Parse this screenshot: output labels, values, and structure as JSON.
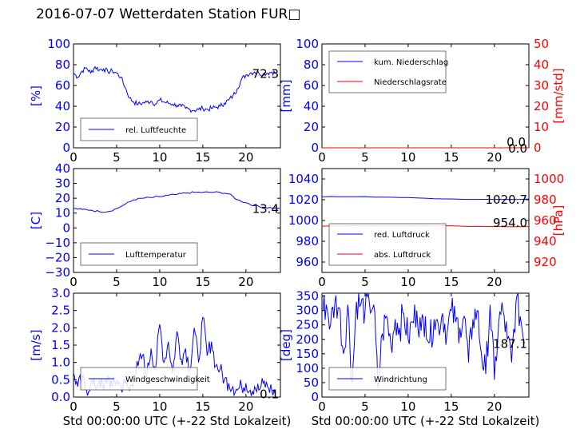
{
  "title": "2016-07-07 Wetterdaten Station FUR□",
  "colors": {
    "primary": "#0000ff",
    "secondary": "#ff0000",
    "axis": "#000000"
  },
  "chart_data": [
    {
      "type": "line",
      "panel": "rel. Luftfeuchte",
      "ylabel": "[%]",
      "xlim": [
        0,
        24
      ],
      "ylim": [
        0,
        100
      ],
      "xticks": [
        "0",
        "5",
        "10",
        "15",
        "20"
      ],
      "yticks": [
        "0",
        "20",
        "40",
        "60",
        "80",
        "100"
      ],
      "legend": "bottom-left",
      "last_value": "72.3",
      "series": [
        {
          "name": "rel. Luftfeuchte",
          "color": "#0000ff",
          "x": [
            0,
            0.5,
            1,
            1.5,
            2,
            2.5,
            3,
            3.5,
            4,
            4.5,
            5,
            5.5,
            6,
            6.5,
            7,
            7.5,
            8,
            8.5,
            9,
            9.5,
            10,
            10.5,
            11,
            11.5,
            12,
            12.5,
            13,
            13.5,
            14,
            14.5,
            15,
            15.5,
            16,
            16.5,
            17,
            17.5,
            18,
            18.5,
            19,
            19.5,
            20,
            20.5,
            21,
            21.5,
            22,
            22.5,
            23,
            23.5
          ],
          "y": [
            72,
            68,
            74,
            77,
            72,
            78,
            75,
            76,
            73,
            74,
            72,
            68,
            58,
            48,
            44,
            42,
            43,
            44,
            45,
            42,
            46,
            44,
            43,
            42,
            41,
            40,
            38,
            37,
            36,
            37,
            38,
            37,
            38,
            39,
            40,
            43,
            46,
            50,
            57,
            66,
            70,
            72,
            73,
            72,
            71,
            72,
            73,
            72
          ]
        }
      ]
    },
    {
      "type": "line",
      "panel": "Niederschlag",
      "ylabel": "[mm]",
      "y2label": "[mm/std]",
      "xlim": [
        0,
        24
      ],
      "ylim": [
        0,
        100
      ],
      "y2lim": [
        0,
        50
      ],
      "xticks": [
        "0",
        "5",
        "10",
        "15",
        "20"
      ],
      "yticks": [
        "0",
        "20",
        "40",
        "60",
        "80",
        "100"
      ],
      "y2ticks": [
        "0",
        "10",
        "20",
        "30",
        "40",
        "50"
      ],
      "legend": "top-left",
      "last_value": "0.0",
      "last_value2": "0.0",
      "series": [
        {
          "name": "kum. Niederschlag",
          "color": "#0000ff",
          "x": [
            0,
            24
          ],
          "y": [
            0,
            0
          ]
        },
        {
          "name": "Niederschlagsrate",
          "color": "#ff0000",
          "axis": "right",
          "x": [
            0,
            24
          ],
          "y": [
            0,
            0
          ]
        }
      ]
    },
    {
      "type": "line",
      "panel": "Lufttemperatur",
      "ylabel": "[C]",
      "xlim": [
        0,
        24
      ],
      "ylim": [
        -30,
        40
      ],
      "xticks": [
        "0",
        "5",
        "10",
        "15",
        "20"
      ],
      "yticks": [
        "−30",
        "−20",
        "−10",
        "0",
        "10",
        "20",
        "30",
        "40"
      ],
      "legend": "bottom-left",
      "last_value": "13.4",
      "series": [
        {
          "name": "Lufttemperatur",
          "color": "#0000ff",
          "x": [
            0,
            1,
            2,
            3,
            4,
            5,
            6,
            7,
            8,
            9,
            10,
            11,
            12,
            13,
            14,
            15,
            16,
            17,
            18,
            19,
            20,
            21,
            22,
            23,
            23.9
          ],
          "y": [
            13,
            12.5,
            12,
            11,
            11,
            13,
            16,
            19,
            20,
            20.5,
            21,
            22,
            22.5,
            23.5,
            24,
            24,
            24,
            24,
            23,
            19,
            17,
            15,
            14,
            13.5,
            13.4
          ]
        }
      ]
    },
    {
      "type": "line",
      "panel": "Luftdruck",
      "y2label": "[hPa]",
      "xlim": [
        0,
        24
      ],
      "ylim": [
        950,
        1050
      ],
      "y2lim": [
        910,
        1010
      ],
      "xticks": [
        "0",
        "5",
        "10",
        "15",
        "20"
      ],
      "yticks": [
        "960",
        "980",
        "1000",
        "1020",
        "1040"
      ],
      "y2ticks": [
        "920",
        "940",
        "960",
        "980",
        "1000"
      ],
      "legend": "bottom-left",
      "last_value": "1020.7",
      "last_value2": "954.0",
      "series": [
        {
          "name": "red. Luftdruck",
          "color": "#0000ff",
          "x": [
            0,
            4,
            8,
            12,
            16,
            20,
            24
          ],
          "y": [
            1022.8,
            1022.9,
            1022.4,
            1021.5,
            1020.5,
            1020.3,
            1020.7
          ]
        },
        {
          "name": "abs. Luftdruck",
          "color": "#ff0000",
          "axis": "right",
          "x": [
            0,
            4,
            8,
            12,
            16,
            20,
            24
          ],
          "y": [
            954.5,
            955.0,
            955.3,
            955.0,
            954.6,
            954.2,
            954.0
          ]
        }
      ]
    },
    {
      "type": "line",
      "panel": "Windgeschwindigkeit",
      "ylabel": "[m/s]",
      "xlabel": "Std 00:00:00 UTC (+-22 Std Lokalzeit)",
      "xlim": [
        0,
        24
      ],
      "ylim": [
        0,
        3
      ],
      "xticks": [
        "0",
        "5",
        "10",
        "15",
        "20"
      ],
      "yticks": [
        "0.0",
        "0.5",
        "1.0",
        "1.5",
        "2.0",
        "2.5",
        "3.0"
      ],
      "legend": "bottom-left",
      "last_value": "0.1",
      "series": [
        {
          "name": "Windgeschwindigkeit",
          "color": "#0000ff",
          "x": [
            0,
            0.5,
            1,
            1.5,
            2,
            2.5,
            3,
            3.5,
            4,
            4.5,
            5,
            5.5,
            6,
            6.5,
            7,
            7.5,
            8,
            8.5,
            9,
            9.5,
            10,
            10.5,
            11,
            11.5,
            12,
            12.5,
            13,
            13.5,
            14,
            14.5,
            15,
            15.5,
            16,
            16.5,
            17,
            17.5,
            18,
            18.5,
            19,
            19.5,
            20,
            20.5,
            21,
            21.5,
            22,
            22.5,
            23,
            23.5
          ],
          "y": [
            0.7,
            0.3,
            0.5,
            0.2,
            0.4,
            0.3,
            0.5,
            0.2,
            0.6,
            0.3,
            0.5,
            0.3,
            0.4,
            0.2,
            0.6,
            0.9,
            1.2,
            0.6,
            1.4,
            0.8,
            2.1,
            1.0,
            1.6,
            0.7,
            1.9,
            1.1,
            1.4,
            0.8,
            2.0,
            1.0,
            2.3,
            1.2,
            1.6,
            0.9,
            0.8,
            0.5,
            0.4,
            0.3,
            0.2,
            0.3,
            0.4,
            0.2,
            0.3,
            0.2,
            0.4,
            0.3,
            0.2,
            0.1
          ]
        }
      ]
    },
    {
      "type": "line",
      "panel": "Windrichtung",
      "ylabel": "[deg]",
      "xlabel": "Std 00:00:00 UTC (+-22 Std Lokalzeit)",
      "xlim": [
        0,
        24
      ],
      "ylim": [
        0,
        360
      ],
      "xticks": [
        "0",
        "5",
        "10",
        "15",
        "20"
      ],
      "yticks": [
        "0",
        "50",
        "100",
        "150",
        "200",
        "250",
        "300",
        "350"
      ],
      "legend": "bottom-left",
      "last_value": "187.1",
      "series": [
        {
          "name": "Windrichtung",
          "color": "#0000ff",
          "x": [
            0,
            0.5,
            1,
            1.5,
            2,
            2.5,
            3,
            3.5,
            4,
            4.5,
            5,
            5.5,
            6,
            6.5,
            7,
            7.5,
            8,
            8.5,
            9,
            9.5,
            10,
            10.5,
            11,
            11.5,
            12,
            12.5,
            13,
            13.5,
            14,
            14.5,
            15,
            15.5,
            16,
            16.5,
            17,
            17.5,
            18,
            18.5,
            19,
            19.5,
            20,
            20.5,
            21,
            21.5,
            22,
            22.5,
            23,
            23.5
          ],
          "y": [
            300,
            320,
            250,
            330,
            310,
            150,
            320,
            50,
            330,
            320,
            300,
            325,
            320,
            30,
            220,
            280,
            180,
            270,
            240,
            290,
            200,
            260,
            300,
            230,
            280,
            190,
            270,
            250,
            290,
            220,
            300,
            260,
            240,
            280,
            120,
            270,
            300,
            150,
            80,
            320,
            60,
            260,
            300,
            200,
            120,
            330,
            280,
            187
          ]
        }
      ]
    }
  ]
}
